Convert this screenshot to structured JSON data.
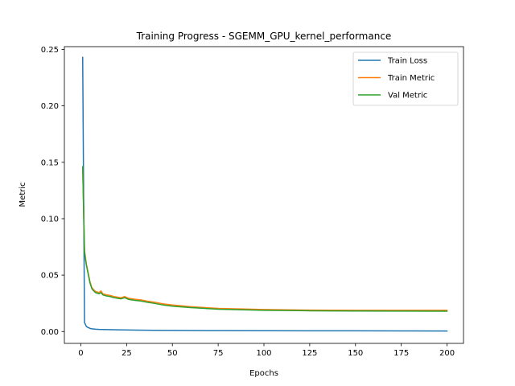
{
  "chart_data": {
    "type": "line",
    "title": "Training Progress - SGEMM_GPU_kernel_performance",
    "xlabel": "Epochs",
    "ylabel": "Metric",
    "xlim": [
      -9,
      209
    ],
    "ylim": [
      -0.0105,
      0.2525
    ],
    "xticks": [
      0,
      25,
      50,
      75,
      100,
      125,
      150,
      175,
      200
    ],
    "yticks": [
      0.0,
      0.05,
      0.1,
      0.15,
      0.2,
      0.25
    ],
    "ytick_labels": [
      "0.00",
      "0.05",
      "0.10",
      "0.15",
      "0.20",
      "0.25"
    ],
    "grid": false,
    "legend_position": "top-right",
    "series": [
      {
        "name": "Train Loss",
        "color": "#1f77b4",
        "x": [
          1,
          2,
          3,
          4,
          5,
          6,
          8,
          10,
          15,
          20,
          30,
          40,
          50,
          60,
          75,
          100,
          125,
          150,
          175,
          200
        ],
        "y": [
          0.243,
          0.008,
          0.0045,
          0.0035,
          0.0028,
          0.0024,
          0.0021,
          0.0019,
          0.0017,
          0.0015,
          0.0013,
          0.0011,
          0.001,
          0.0009,
          0.0008,
          0.0007,
          0.00065,
          0.0006,
          0.00055,
          0.0005
        ]
      },
      {
        "name": "Train Metric",
        "color": "#ff7f0e",
        "x": [
          1,
          2,
          3,
          4,
          5,
          6,
          7,
          8,
          10,
          11,
          12,
          14,
          16,
          18,
          20,
          22,
          24,
          26,
          28,
          30,
          33,
          36,
          40,
          45,
          50,
          60,
          75,
          100,
          125,
          150,
          175,
          200
        ],
        "y": [
          0.146,
          0.072,
          0.06,
          0.052,
          0.044,
          0.039,
          0.037,
          0.0355,
          0.0345,
          0.036,
          0.0335,
          0.0325,
          0.032,
          0.031,
          0.0305,
          0.03,
          0.031,
          0.0295,
          0.029,
          0.0285,
          0.028,
          0.027,
          0.026,
          0.0245,
          0.0235,
          0.022,
          0.0205,
          0.0195,
          0.019,
          0.0188,
          0.0188,
          0.0188
        ]
      },
      {
        "name": "Val Metric",
        "color": "#2ca02c",
        "x": [
          1,
          2,
          3,
          4,
          5,
          6,
          7,
          8,
          10,
          11,
          12,
          14,
          16,
          18,
          20,
          22,
          24,
          26,
          28,
          30,
          33,
          36,
          40,
          45,
          50,
          60,
          75,
          100,
          125,
          150,
          175,
          200
        ],
        "y": [
          0.146,
          0.07,
          0.059,
          0.051,
          0.043,
          0.038,
          0.036,
          0.0345,
          0.0335,
          0.0345,
          0.0325,
          0.0315,
          0.031,
          0.03,
          0.0295,
          0.029,
          0.03,
          0.0285,
          0.028,
          0.0275,
          0.027,
          0.026,
          0.025,
          0.0235,
          0.0225,
          0.0212,
          0.0198,
          0.0188,
          0.0184,
          0.0182,
          0.0181,
          0.018
        ]
      }
    ]
  }
}
